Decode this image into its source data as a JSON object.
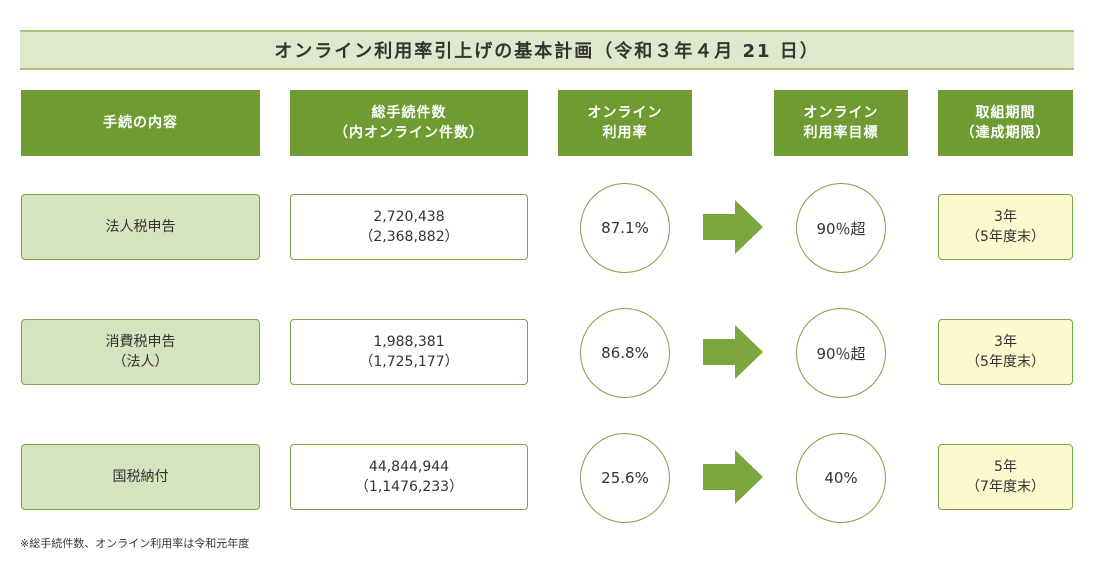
{
  "title": "オンライン利用率引上げの基本計画（令和３年４月 21 日）",
  "headers": {
    "procedure": [
      "手続の内容"
    ],
    "count": [
      "総手続件数",
      "（内オンライン件数）"
    ],
    "rate": [
      "オンライン",
      "利用率"
    ],
    "target": [
      "オンライン",
      "利用率目標"
    ],
    "period": [
      "取組期間",
      "（達成期限）"
    ]
  },
  "rows": [
    {
      "procedure": [
        "法人税申告"
      ],
      "count": [
        "2,720,438",
        "（2,368,882）"
      ],
      "rate": "87.1%",
      "target": "90％超",
      "period": [
        "3年",
        "（5年度末）"
      ]
    },
    {
      "procedure": [
        "消費税申告",
        "（法人）"
      ],
      "count": [
        "1,988,381",
        "（1,725,177）"
      ],
      "rate": "86.8%",
      "target": "90％超",
      "period": [
        "3年",
        "（5年度末）"
      ]
    },
    {
      "procedure": [
        "国税納付"
      ],
      "count": [
        "44,844,944",
        "（1,1476,233）"
      ],
      "rate": "25.6%",
      "target": "40%",
      "period": [
        "5年",
        "（7年度末）"
      ]
    }
  ],
  "note": "※総手続件数、オンライン利用率は令和元年度",
  "colors": {
    "header_bg": "#6e9c32",
    "title_bg": "#dde8cc",
    "procedure_bg": "#d5e3bf",
    "period_bg": "#fdf9cf",
    "border": "#7aa544",
    "arrow": "#7ba63f"
  }
}
